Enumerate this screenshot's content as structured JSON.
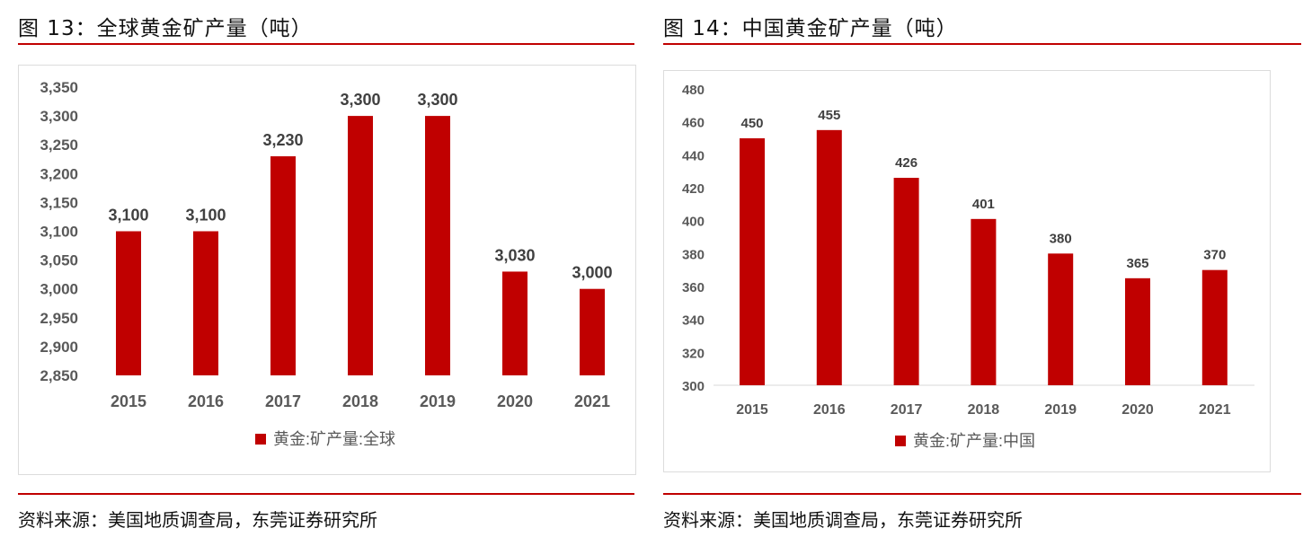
{
  "charts": [
    {
      "figure_title": "图 13：全球黄金矿产量（吨）",
      "source": "资料来源：美国地质调查局，东莞证券研究所"
    },
    {
      "figure_title": "图 14：中国黄金矿产量（吨）",
      "source": "资料来源：美国地质调查局，东莞证券研究所"
    }
  ],
  "chart_data": [
    {
      "type": "bar",
      "title": "",
      "categories": [
        "2015",
        "2016",
        "2017",
        "2018",
        "2019",
        "2020",
        "2021"
      ],
      "series": [
        {
          "name": "黄金:矿产量:全球",
          "values": [
            3100,
            3100,
            3230,
            3300,
            3300,
            3030,
            3000
          ]
        }
      ],
      "data_labels": [
        "3,100",
        "3,100",
        "3,230",
        "3,300",
        "3,300",
        "3,030",
        "3,000"
      ],
      "ylim": [
        2850,
        3350
      ],
      "yticks": [
        "2,850",
        "2,900",
        "2,950",
        "3,000",
        "3,050",
        "3,100",
        "3,150",
        "3,200",
        "3,250",
        "3,300",
        "3,350"
      ],
      "grid": false,
      "legend": "bottom",
      "color": "#c00000"
    },
    {
      "type": "bar",
      "title": "",
      "categories": [
        "2015",
        "2016",
        "2017",
        "2018",
        "2019",
        "2020",
        "2021"
      ],
      "series": [
        {
          "name": "黄金:矿产量:中国",
          "values": [
            450,
            455,
            426,
            401,
            380,
            365,
            370
          ]
        }
      ],
      "data_labels": [
        "450",
        "455",
        "426",
        "401",
        "380",
        "365",
        "370"
      ],
      "ylim": [
        300,
        480
      ],
      "yticks": [
        "300",
        "320",
        "340",
        "360",
        "380",
        "400",
        "420",
        "440",
        "460",
        "480"
      ],
      "grid": false,
      "legend": "bottom",
      "color": "#c00000"
    }
  ]
}
